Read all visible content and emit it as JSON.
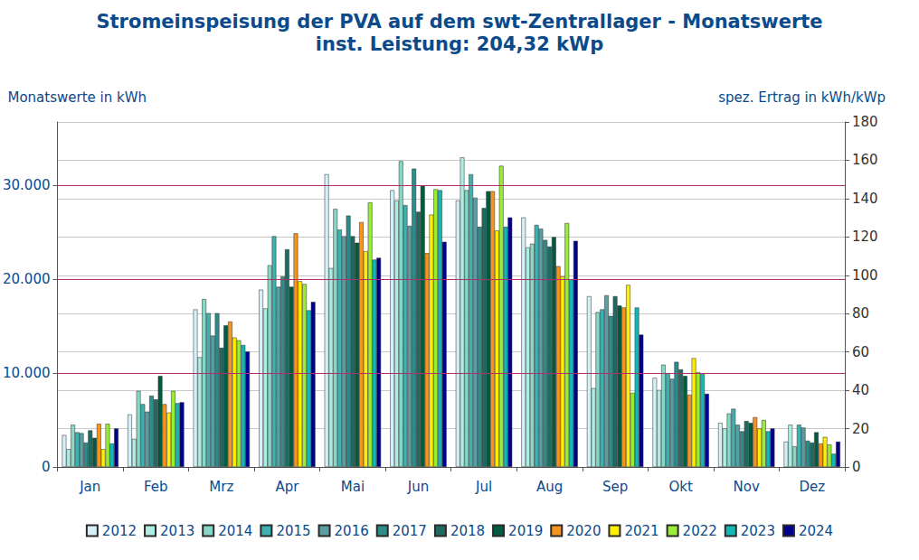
{
  "chart_data": {
    "type": "bar",
    "title": "Stromeinspeisung der PVA auf dem swt-Zentrallager - Monatswerte",
    "subtitle": "inst. Leistung: 204,32 kWp",
    "y_label": "Monatswerte in kWh",
    "y2_label": "spez. Ertrag in kWh/kWp",
    "categories": [
      "Jan",
      "Feb",
      "Mrz",
      "Apr",
      "Mai",
      "Jun",
      "Jul",
      "Aug",
      "Sep",
      "Okt",
      "Nov",
      "Dez"
    ],
    "series": [
      {
        "name": "2012",
        "color": "#d4f1f9",
        "values": [
          3400,
          5600,
          16800,
          18900,
          31200,
          29500,
          28400,
          26600,
          18200,
          9500,
          4700,
          2700
        ]
      },
      {
        "name": "2013",
        "color": "#aeeee2",
        "values": [
          1900,
          3000,
          11700,
          16900,
          21200,
          28400,
          33000,
          23400,
          8400,
          8200,
          4100,
          4500
        ]
      },
      {
        "name": "2014",
        "color": "#86d8c6",
        "values": [
          4500,
          8100,
          17900,
          21500,
          27500,
          32600,
          29500,
          23800,
          16500,
          10900,
          5700,
          2200
        ]
      },
      {
        "name": "2015",
        "color": "#3fb1b1",
        "values": [
          3700,
          6700,
          16400,
          24600,
          25300,
          27900,
          31200,
          25800,
          16800,
          10000,
          6200,
          4500
        ]
      },
      {
        "name": "2016",
        "color": "#5a9ea2",
        "values": [
          3600,
          5900,
          14000,
          19200,
          24600,
          25700,
          28700,
          25400,
          18300,
          9400,
          4500,
          4200
        ]
      },
      {
        "name": "2017",
        "color": "#2e8c8a",
        "values": [
          2600,
          7600,
          16400,
          20300,
          26800,
          31800,
          25600,
          24200,
          16100,
          11200,
          3800,
          2800
        ]
      },
      {
        "name": "2018",
        "color": "#1f6b62",
        "values": [
          3900,
          7200,
          12700,
          23200,
          24600,
          27200,
          27600,
          23500,
          18200,
          10400,
          4900,
          2600
        ]
      },
      {
        "name": "2019",
        "color": "#005c40",
        "values": [
          3100,
          9700,
          15100,
          19200,
          23900,
          30000,
          29400,
          24500,
          17200,
          9700,
          4700,
          3700
        ]
      },
      {
        "name": "2020",
        "color": "#f7941d",
        "values": [
          4600,
          6700,
          15500,
          24900,
          26100,
          22800,
          29400,
          21400,
          17000,
          7700,
          5300,
          2500
        ]
      },
      {
        "name": "2021",
        "color": "#ffee00",
        "values": [
          1900,
          5800,
          13800,
          19800,
          23000,
          26900,
          25200,
          20300,
          19400,
          11600,
          4100,
          3200
        ]
      },
      {
        "name": "2022",
        "color": "#99ee33",
        "values": [
          4600,
          8100,
          13500,
          19500,
          28200,
          29600,
          32100,
          26000,
          7900,
          10100,
          5000,
          2400
        ]
      },
      {
        "name": "2023",
        "color": "#12b8b8",
        "values": [
          2500,
          6800,
          13000,
          16700,
          22100,
          29500,
          25600,
          20000,
          17000,
          9900,
          3800,
          1400
        ]
      },
      {
        "name": "2024",
        "color": "#000090",
        "values": [
          4100,
          6900,
          12300,
          17600,
          22300,
          24000,
          26600,
          24100,
          14100,
          7800,
          4100,
          2700
        ]
      }
    ],
    "ylim": [
      0,
      36778
    ],
    "yticks": [
      0,
      {
        "value": 10000,
        "label": "10.000"
      },
      {
        "value": 20000,
        "label": "20.000"
      },
      {
        "value": 30000,
        "label": "30.000"
      }
    ],
    "y2lim": [
      0,
      180
    ],
    "y2ticks": [
      0,
      20,
      40,
      60,
      80,
      100,
      120,
      140,
      160,
      180
    ],
    "grid": true,
    "legend": "bottom"
  }
}
